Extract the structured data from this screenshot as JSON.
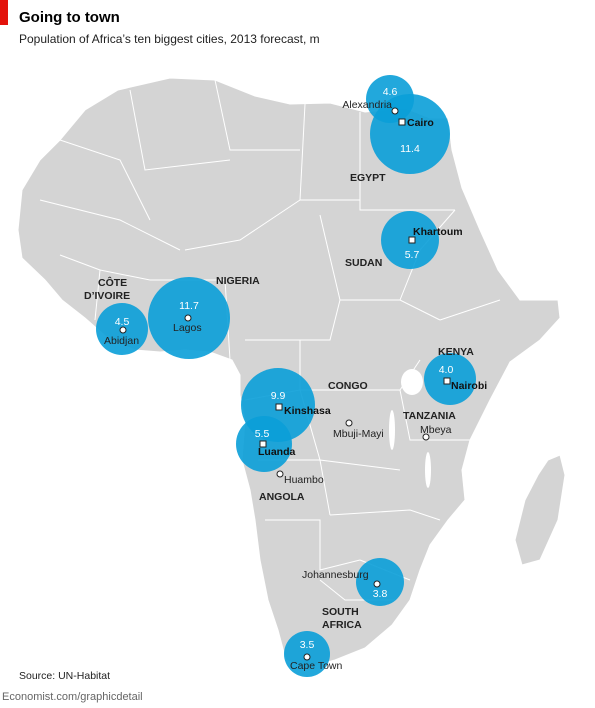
{
  "header": {
    "title": "Going to town",
    "subtitle": "Population of Africa’s ten biggest cities, 2013 forecast, m"
  },
  "source": "Source: UN-Habitat",
  "footer": "Economist.com/graphicdetail",
  "colors": {
    "land": "#d4d4d4",
    "border": "#ffffff",
    "bubble": "#0a9fd8",
    "bubble_opacity": 0.9,
    "brand_red": "#e3120b"
  },
  "countries": {
    "egypt": "EGYPT",
    "sudan": "SUDAN",
    "nigeria": "NIGERIA",
    "cote_divoire_1": "CÔTE",
    "cote_divoire_2": "D’IVOIRE",
    "kenya": "KENYA",
    "congo": "CONGO",
    "tanzania": "TANZANIA",
    "angola": "ANGOLA",
    "south_africa_1": "SOUTH",
    "south_africa_2": "AFRICA"
  },
  "cities": [
    {
      "name": "Alexandria",
      "population": 4.6,
      "unit": "m"
    },
    {
      "name": "Cairo",
      "population": 11.4,
      "unit": "m"
    },
    {
      "name": "Khartoum",
      "population": 5.7,
      "unit": "m"
    },
    {
      "name": "Lagos",
      "population": 11.7,
      "unit": "m"
    },
    {
      "name": "Abidjan",
      "population": 4.5,
      "unit": "m"
    },
    {
      "name": "Nairobi",
      "population": 4.0,
      "unit": "m"
    },
    {
      "name": "Kinshasa",
      "population": 9.9,
      "unit": "m"
    },
    {
      "name": "Luanda",
      "population": 5.5,
      "unit": "m"
    },
    {
      "name": "Johannesburg",
      "population": 3.8,
      "unit": "m"
    },
    {
      "name": "Cape Town",
      "population": 3.5,
      "unit": "m"
    }
  ],
  "other_cities": {
    "mbuji_mayi": "Mbuji-Mayi",
    "mbeya": "Mbeya",
    "huambo": "Huambo"
  },
  "values_text": {
    "alexandria": "4.6",
    "cairo": "11.4",
    "khartoum": "5.7",
    "lagos": "11.7",
    "abidjan": "4.5",
    "nairobi": "4.0",
    "kinshasa": "9.9",
    "luanda": "5.5",
    "johannesburg": "3.8",
    "cape_town": "3.5"
  }
}
